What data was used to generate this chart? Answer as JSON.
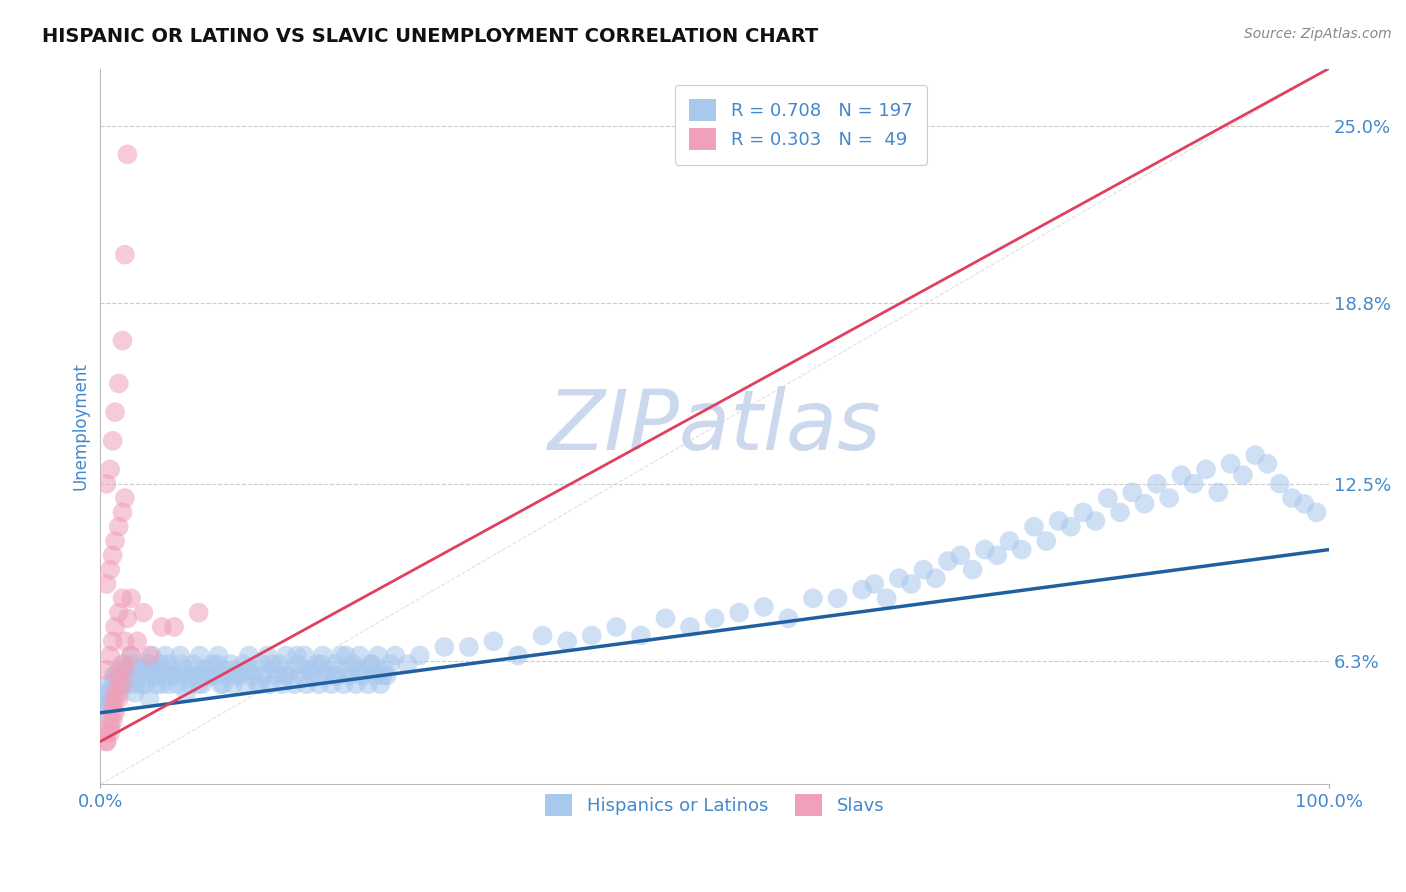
{
  "title": "HISPANIC OR LATINO VS SLAVIC UNEMPLOYMENT CORRELATION CHART",
  "source_text": "Source: ZipAtlas.com",
  "ylabel": "Unemployment",
  "x_min": 0.0,
  "x_max": 1.0,
  "y_min": 2.0,
  "y_max": 27.0,
  "y_ticks": [
    6.3,
    12.5,
    18.8,
    25.0
  ],
  "x_tick_labels": [
    "0.0%",
    "100.0%"
  ],
  "blue_color": "#a8c8ee",
  "blue_line_color": "#2060a0",
  "pink_color": "#f0a0b8",
  "pink_line_color": "#e04060",
  "legend_blue_label": "R = 0.708   N = 197",
  "legend_pink_label": "R = 0.303   N =  49",
  "watermark": "ZIPatlas",
  "watermark_color": "#ccd8ee",
  "background_color": "#ffffff",
  "title_fontsize": 14,
  "tick_label_color": "#4488cc",
  "grid_color": "#cccccc",
  "blue_scatter_x": [
    0.005,
    0.008,
    0.01,
    0.012,
    0.015,
    0.018,
    0.02,
    0.022,
    0.025,
    0.028,
    0.03,
    0.032,
    0.035,
    0.038,
    0.04,
    0.042,
    0.045,
    0.048,
    0.05,
    0.055,
    0.06,
    0.065,
    0.07,
    0.075,
    0.08,
    0.085,
    0.09,
    0.095,
    0.1,
    0.11,
    0.12,
    0.13,
    0.14,
    0.15,
    0.16,
    0.17,
    0.18,
    0.19,
    0.2,
    0.21,
    0.22,
    0.23,
    0.24,
    0.25,
    0.26,
    0.28,
    0.3,
    0.32,
    0.34,
    0.36,
    0.38,
    0.4,
    0.42,
    0.44,
    0.46,
    0.48,
    0.5,
    0.52,
    0.54,
    0.56,
    0.58,
    0.6,
    0.62,
    0.63,
    0.64,
    0.65,
    0.66,
    0.67,
    0.68,
    0.69,
    0.7,
    0.71,
    0.72,
    0.73,
    0.74,
    0.75,
    0.76,
    0.77,
    0.78,
    0.79,
    0.8,
    0.81,
    0.82,
    0.83,
    0.84,
    0.85,
    0.86,
    0.87,
    0.88,
    0.89,
    0.9,
    0.91,
    0.92,
    0.93,
    0.94,
    0.95,
    0.96,
    0.97,
    0.98,
    0.99,
    0.002,
    0.003,
    0.004,
    0.006,
    0.007,
    0.009,
    0.011,
    0.013,
    0.016,
    0.019,
    0.021,
    0.023,
    0.026,
    0.029,
    0.031,
    0.033,
    0.036,
    0.039,
    0.041,
    0.043,
    0.046,
    0.049,
    0.051,
    0.053,
    0.056,
    0.058,
    0.061,
    0.063,
    0.066,
    0.068,
    0.071,
    0.073,
    0.076,
    0.078,
    0.081,
    0.083,
    0.086,
    0.088,
    0.091,
    0.093,
    0.096,
    0.098,
    0.101,
    0.103,
    0.106,
    0.108,
    0.111,
    0.113,
    0.116,
    0.118,
    0.121,
    0.123,
    0.126,
    0.128,
    0.131,
    0.133,
    0.136,
    0.138,
    0.141,
    0.143,
    0.146,
    0.148,
    0.151,
    0.153,
    0.156,
    0.158,
    0.161,
    0.163,
    0.166,
    0.168,
    0.171,
    0.173,
    0.176,
    0.178,
    0.181,
    0.183,
    0.186,
    0.188,
    0.191,
    0.193,
    0.196,
    0.198,
    0.201,
    0.203,
    0.206,
    0.208,
    0.211,
    0.213,
    0.216,
    0.218,
    0.221,
    0.223,
    0.226,
    0.228,
    0.231,
    0.233,
    0.236
  ],
  "blue_scatter_y": [
    4.8,
    5.2,
    5.5,
    5.8,
    6.0,
    5.5,
    6.2,
    5.8,
    6.5,
    5.2,
    5.8,
    6.0,
    5.5,
    6.2,
    5.0,
    6.5,
    5.8,
    6.0,
    5.5,
    6.2,
    5.8,
    6.5,
    5.2,
    5.8,
    5.5,
    6.0,
    5.8,
    6.2,
    5.5,
    5.8,
    6.0,
    5.5,
    6.2,
    5.8,
    6.5,
    6.0,
    6.2,
    5.8,
    6.5,
    6.0,
    6.2,
    5.8,
    6.5,
    6.2,
    6.5,
    6.8,
    6.8,
    7.0,
    6.5,
    7.2,
    7.0,
    7.2,
    7.5,
    7.2,
    7.8,
    7.5,
    7.8,
    8.0,
    8.2,
    7.8,
    8.5,
    8.5,
    8.8,
    9.0,
    8.5,
    9.2,
    9.0,
    9.5,
    9.2,
    9.8,
    10.0,
    9.5,
    10.2,
    10.0,
    10.5,
    10.2,
    11.0,
    10.5,
    11.2,
    11.0,
    11.5,
    11.2,
    12.0,
    11.5,
    12.2,
    11.8,
    12.5,
    12.0,
    12.8,
    12.5,
    13.0,
    12.2,
    13.2,
    12.8,
    13.5,
    13.2,
    12.5,
    12.0,
    11.8,
    11.5,
    4.5,
    5.0,
    5.2,
    4.8,
    5.5,
    5.0,
    5.8,
    5.5,
    5.2,
    5.8,
    6.0,
    5.5,
    6.2,
    5.5,
    5.8,
    6.0,
    5.5,
    6.2,
    5.8,
    6.0,
    5.5,
    6.2,
    5.8,
    6.5,
    5.5,
    6.0,
    5.8,
    5.5,
    6.2,
    5.8,
    6.0,
    5.5,
    6.2,
    5.8,
    6.5,
    5.5,
    6.0,
    5.8,
    6.2,
    5.8,
    6.5,
    5.5,
    6.0,
    5.8,
    6.2,
    5.5,
    6.0,
    5.8,
    6.2,
    5.5,
    6.5,
    5.8,
    6.0,
    5.5,
    6.2,
    5.8,
    6.5,
    5.5,
    6.0,
    5.8,
    6.2,
    5.5,
    6.5,
    5.8,
    6.0,
    5.5,
    6.2,
    5.8,
    6.5,
    5.5,
    6.0,
    5.8,
    6.2,
    5.5,
    6.5,
    5.8,
    6.0,
    5.5,
    6.2,
    5.8,
    6.5,
    5.5,
    6.0,
    5.8,
    6.2,
    5.5,
    6.5,
    5.8,
    6.0,
    5.5,
    6.2,
    5.8,
    6.5,
    5.5,
    6.0,
    5.8,
    6.2
  ],
  "pink_scatter_x": [
    0.005,
    0.008,
    0.01,
    0.012,
    0.015,
    0.005,
    0.008,
    0.01,
    0.012,
    0.015,
    0.018,
    0.005,
    0.008,
    0.01,
    0.012,
    0.015,
    0.018,
    0.02,
    0.005,
    0.008,
    0.01,
    0.012,
    0.015,
    0.018,
    0.02,
    0.022,
    0.005,
    0.008,
    0.01,
    0.012,
    0.015,
    0.018,
    0.02,
    0.022,
    0.025,
    0.005,
    0.008,
    0.01,
    0.012,
    0.015,
    0.018,
    0.02,
    0.025,
    0.03,
    0.035,
    0.04,
    0.05,
    0.06,
    0.08
  ],
  "pink_scatter_y": [
    3.5,
    4.0,
    4.5,
    5.0,
    5.5,
    6.0,
    6.5,
    7.0,
    7.5,
    8.0,
    8.5,
    9.0,
    9.5,
    10.0,
    10.5,
    11.0,
    11.5,
    12.0,
    12.5,
    13.0,
    14.0,
    15.0,
    16.0,
    17.5,
    20.5,
    24.0,
    3.8,
    4.2,
    4.8,
    5.2,
    5.8,
    6.2,
    7.0,
    7.8,
    8.5,
    3.5,
    3.8,
    4.2,
    4.5,
    5.0,
    5.5,
    6.0,
    6.5,
    7.0,
    8.0,
    6.5,
    7.5,
    7.5,
    8.0
  ],
  "blue_trend_x": [
    0.0,
    1.0
  ],
  "blue_trend_y": [
    4.5,
    10.2
  ],
  "pink_trend_x": [
    0.0,
    1.0
  ],
  "pink_trend_y": [
    3.5,
    27.0
  ],
  "diag_line_x": [
    0.0,
    1.0
  ],
  "diag_line_y": [
    2.0,
    27.0
  ]
}
